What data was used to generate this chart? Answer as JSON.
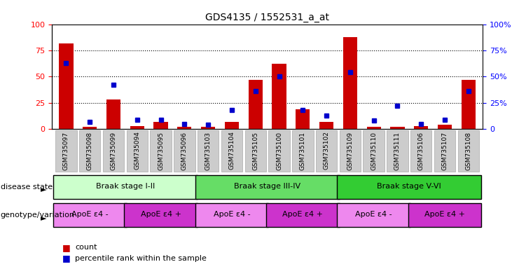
{
  "title": "GDS4135 / 1552531_a_at",
  "samples": [
    "GSM735097",
    "GSM735098",
    "GSM735099",
    "GSM735094",
    "GSM735095",
    "GSM735096",
    "GSM735103",
    "GSM735104",
    "GSM735105",
    "GSM735100",
    "GSM735101",
    "GSM735102",
    "GSM735109",
    "GSM735110",
    "GSM735111",
    "GSM735106",
    "GSM735107",
    "GSM735108"
  ],
  "counts": [
    82,
    2,
    28,
    3,
    7,
    2,
    2,
    7,
    47,
    62,
    19,
    7,
    88,
    2,
    2,
    3,
    4,
    47
  ],
  "percentile": [
    63,
    7,
    42,
    9,
    9,
    5,
    4,
    18,
    36,
    50,
    18,
    13,
    54,
    8,
    22,
    5,
    9,
    36
  ],
  "bar_color": "#cc0000",
  "dot_color": "#0000cc",
  "disease_state_groups": [
    {
      "label": "Braak stage I-II",
      "start": 0,
      "end": 6,
      "color": "#ccffcc"
    },
    {
      "label": "Braak stage III-IV",
      "start": 6,
      "end": 12,
      "color": "#66dd66"
    },
    {
      "label": "Braak stage V-VI",
      "start": 12,
      "end": 18,
      "color": "#33cc33"
    }
  ],
  "genotype_groups": [
    {
      "label": "ApoE ε4 -",
      "start": 0,
      "end": 3,
      "color": "#ee88ee"
    },
    {
      "label": "ApoE ε4 +",
      "start": 3,
      "end": 6,
      "color": "#cc33cc"
    },
    {
      "label": "ApoE ε4 -",
      "start": 6,
      "end": 9,
      "color": "#ee88ee"
    },
    {
      "label": "ApoE ε4 +",
      "start": 9,
      "end": 12,
      "color": "#cc33cc"
    },
    {
      "label": "ApoE ε4 -",
      "start": 12,
      "end": 15,
      "color": "#ee88ee"
    },
    {
      "label": "ApoE ε4 +",
      "start": 15,
      "end": 18,
      "color": "#cc33cc"
    }
  ],
  "ylim": [
    0,
    100
  ],
  "yticks": [
    0,
    25,
    50,
    75,
    100
  ],
  "ds_label": "disease state",
  "gv_label": "genotype/variation",
  "legend_count_color": "#cc0000",
  "legend_dot_color": "#0000cc",
  "bg_color": "#ffffff",
  "tick_label_bg": "#cccccc",
  "tick_label_border": "#aaaaaa"
}
